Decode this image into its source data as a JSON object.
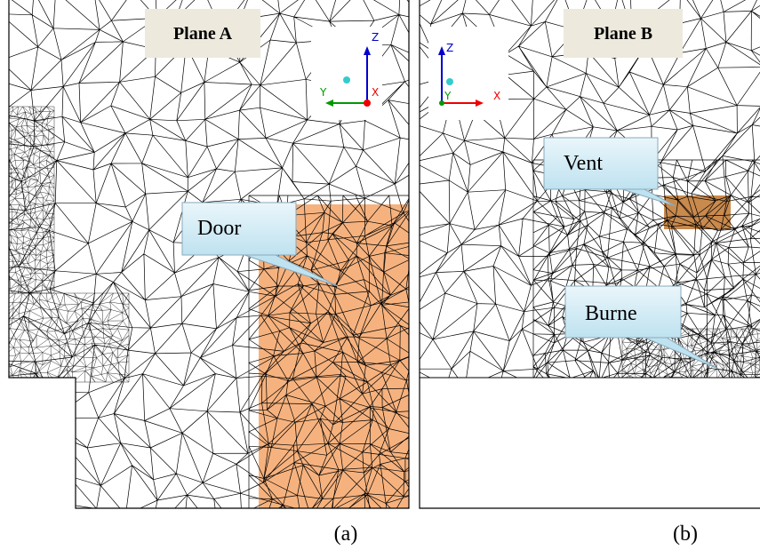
{
  "panel_a": {
    "title": "Plane A",
    "callout": "Door",
    "axes": [
      "Z",
      "Y",
      "X"
    ],
    "caption": "(a)"
  },
  "panel_b": {
    "title": "Plane B",
    "callouts": [
      "Vent",
      "Burne"
    ],
    "axes": [
      "Z",
      "Y",
      "X"
    ],
    "caption": "(b)"
  }
}
